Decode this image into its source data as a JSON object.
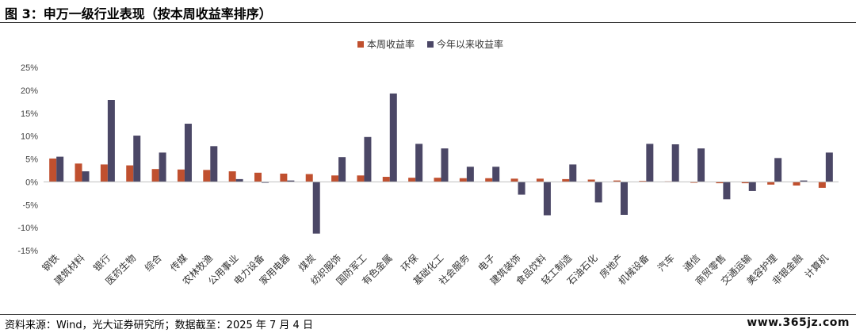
{
  "title": "图 3：申万一级行业表现（按本周收益率排序）",
  "source_note": "资料来源：Wind，光大证券研究所；数据截至：2025 年 7 月 4 日",
  "watermark": "www.365jz.com",
  "chart_data": {
    "type": "bar",
    "ylim": [
      -15,
      25
    ],
    "yticks": [
      -15,
      -10,
      -5,
      0,
      5,
      10,
      15,
      20,
      25
    ],
    "ytick_labels": [
      "-15%",
      "-10%",
      "-5%",
      "0%",
      "5%",
      "10%",
      "15%",
      "20%",
      "25%"
    ],
    "legend_position": "top-center",
    "grid": false,
    "categories": [
      "钢铁",
      "建筑材料",
      "银行",
      "医药生物",
      "综合",
      "传媒",
      "农林牧渔",
      "公用事业",
      "电力设备",
      "家用电器",
      "煤炭",
      "纺织服饰",
      "国防军工",
      "有色金属",
      "环保",
      "基础化工",
      "社会服务",
      "电子",
      "建筑装饰",
      "食品饮料",
      "轻工制造",
      "石油石化",
      "房地产",
      "机械设备",
      "汽车",
      "通信",
      "商贸零售",
      "交通运输",
      "美容护理",
      "非银金融",
      "计算机"
    ],
    "series": [
      {
        "name": "本周收益率",
        "color": "#C0502F",
        "values": [
          5.1,
          4.0,
          3.8,
          3.6,
          2.8,
          2.7,
          2.6,
          2.3,
          2.0,
          1.8,
          1.7,
          1.4,
          1.4,
          1.1,
          0.9,
          0.9,
          0.8,
          0.8,
          0.7,
          0.7,
          0.6,
          0.5,
          0.3,
          0.2,
          0.1,
          -0.2,
          -0.3,
          -0.3,
          -0.6,
          -0.8,
          -1.3
        ]
      },
      {
        "name": "今年以来收益率",
        "color": "#4B4766",
        "values": [
          5.5,
          2.3,
          17.9,
          10.1,
          6.4,
          12.7,
          7.8,
          0.6,
          -0.2,
          0.3,
          -11.3,
          5.4,
          9.8,
          19.3,
          8.3,
          7.3,
          3.3,
          3.3,
          -2.8,
          -7.3,
          3.8,
          -4.5,
          -7.2,
          8.3,
          8.2,
          7.3,
          -3.8,
          -2.0,
          5.2,
          0.3,
          6.4
        ]
      }
    ]
  }
}
